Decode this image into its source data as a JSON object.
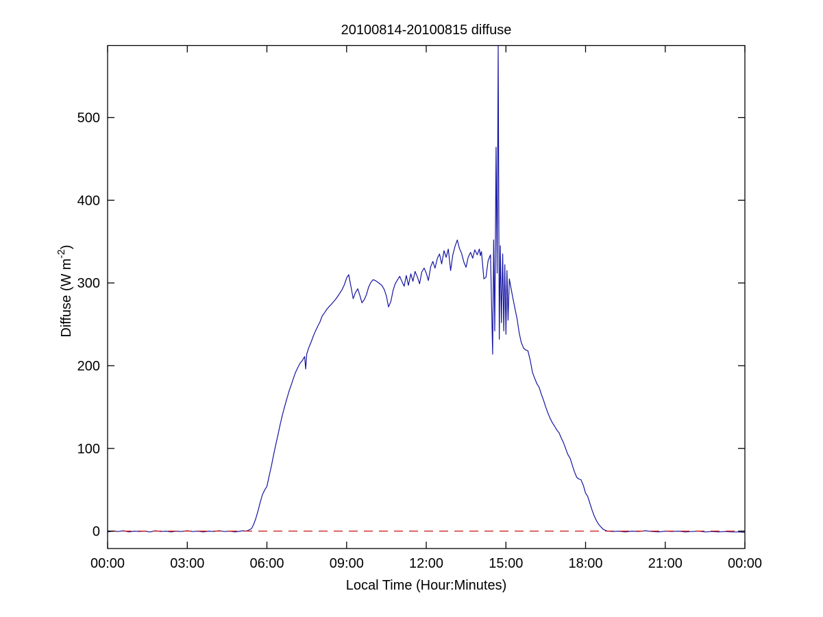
{
  "title": "20100814-20100815 diffuse",
  "chart_data": {
    "type": "line",
    "title": "20100814-20100815 diffuse",
    "xlabel": "Local Time (Hour:Minutes)",
    "ylabel": "Diffuse (W m^-2)",
    "ylabel_parts": {
      "base": "Diffuse (W m",
      "superscript": "-2",
      "close": ")"
    },
    "xlim": [
      0,
      24
    ],
    "ylim": [
      -21,
      587
    ],
    "x_ticks": [
      0,
      3,
      6,
      9,
      12,
      15,
      18,
      21,
      24
    ],
    "x_tick_labels": [
      "00:00",
      "03:00",
      "06:00",
      "09:00",
      "12:00",
      "15:00",
      "18:00",
      "21:00",
      "00:00"
    ],
    "y_ticks": [
      0,
      100,
      200,
      300,
      400,
      500
    ],
    "y_tick_labels": [
      "0",
      "100",
      "200",
      "300",
      "400",
      "500"
    ],
    "grid": false,
    "legend": null,
    "box": true,
    "tick_direction": "in",
    "axis_color": "#000000",
    "background_color": "#ffffff",
    "series": [
      {
        "name": "diffuse",
        "color": "#1414a0",
        "style": "solid",
        "x_units": "hours",
        "points": [
          [
            0,
            -1
          ],
          [
            0.2,
            0
          ],
          [
            0.4,
            -0.5
          ],
          [
            0.6,
            0.5
          ],
          [
            0.8,
            -1
          ],
          [
            1,
            0
          ],
          [
            1.2,
            -0.5
          ],
          [
            1.4,
            0
          ],
          [
            1.6,
            -1
          ],
          [
            1.8,
            0.5
          ],
          [
            2,
            -0.5
          ],
          [
            2.2,
            0
          ],
          [
            2.4,
            -1
          ],
          [
            2.6,
            0
          ],
          [
            2.8,
            -0.5
          ],
          [
            3,
            0.5
          ],
          [
            3.2,
            -0.5
          ],
          [
            3.4,
            0
          ],
          [
            3.6,
            -1
          ],
          [
            3.8,
            0
          ],
          [
            4,
            -0.5
          ],
          [
            4.2,
            0.5
          ],
          [
            4.4,
            -0.5
          ],
          [
            4.6,
            0
          ],
          [
            4.8,
            -1
          ],
          [
            5,
            0
          ],
          [
            5.1,
            0.5
          ],
          [
            5.2,
            0
          ],
          [
            5.3,
            1
          ],
          [
            5.42,
            3
          ],
          [
            5.5,
            8
          ],
          [
            5.58,
            15
          ],
          [
            5.67,
            25
          ],
          [
            5.75,
            35
          ],
          [
            5.83,
            44
          ],
          [
            5.92,
            50
          ],
          [
            6,
            54
          ],
          [
            6.08,
            66
          ],
          [
            6.17,
            79
          ],
          [
            6.25,
            92
          ],
          [
            6.33,
            104
          ],
          [
            6.42,
            117
          ],
          [
            6.5,
            129
          ],
          [
            6.58,
            140
          ],
          [
            6.67,
            151
          ],
          [
            6.75,
            160
          ],
          [
            6.83,
            169
          ],
          [
            6.92,
            177
          ],
          [
            7,
            185
          ],
          [
            7.08,
            192
          ],
          [
            7.17,
            198
          ],
          [
            7.25,
            203
          ],
          [
            7.33,
            206
          ],
          [
            7.42,
            211
          ],
          [
            7.46,
            196
          ],
          [
            7.5,
            214
          ],
          [
            7.58,
            222
          ],
          [
            7.67,
            229
          ],
          [
            7.75,
            236
          ],
          [
            7.83,
            242
          ],
          [
            7.92,
            248
          ],
          [
            8,
            253
          ],
          [
            8.08,
            260
          ],
          [
            8.17,
            264
          ],
          [
            8.25,
            268
          ],
          [
            8.33,
            271
          ],
          [
            8.42,
            274
          ],
          [
            8.5,
            277
          ],
          [
            8.58,
            280
          ],
          [
            8.67,
            284
          ],
          [
            8.75,
            288
          ],
          [
            8.83,
            292
          ],
          [
            8.92,
            298
          ],
          [
            9,
            306
          ],
          [
            9.08,
            310
          ],
          [
            9.17,
            295
          ],
          [
            9.25,
            281
          ],
          [
            9.33,
            288
          ],
          [
            9.42,
            293
          ],
          [
            9.5,
            285
          ],
          [
            9.58,
            276
          ],
          [
            9.67,
            280
          ],
          [
            9.75,
            286
          ],
          [
            9.83,
            295
          ],
          [
            9.92,
            301
          ],
          [
            10,
            304
          ],
          [
            10.08,
            303
          ],
          [
            10.17,
            301
          ],
          [
            10.25,
            299
          ],
          [
            10.33,
            297
          ],
          [
            10.42,
            292
          ],
          [
            10.5,
            284
          ],
          [
            10.58,
            271
          ],
          [
            10.67,
            278
          ],
          [
            10.75,
            291
          ],
          [
            10.83,
            299
          ],
          [
            10.92,
            304
          ],
          [
            11,
            308
          ],
          [
            11.08,
            302
          ],
          [
            11.17,
            296
          ],
          [
            11.25,
            309
          ],
          [
            11.33,
            297
          ],
          [
            11.42,
            311
          ],
          [
            11.5,
            302
          ],
          [
            11.58,
            314
          ],
          [
            11.67,
            307
          ],
          [
            11.75,
            299
          ],
          [
            11.83,
            313
          ],
          [
            11.92,
            318
          ],
          [
            12,
            312
          ],
          [
            12.08,
            303
          ],
          [
            12.17,
            320
          ],
          [
            12.25,
            326
          ],
          [
            12.33,
            318
          ],
          [
            12.42,
            330
          ],
          [
            12.5,
            335
          ],
          [
            12.58,
            323
          ],
          [
            12.67,
            339
          ],
          [
            12.75,
            331
          ],
          [
            12.83,
            341
          ],
          [
            12.92,
            315
          ],
          [
            13,
            334
          ],
          [
            13.08,
            344
          ],
          [
            13.17,
            352
          ],
          [
            13.25,
            342
          ],
          [
            13.33,
            336
          ],
          [
            13.42,
            325
          ],
          [
            13.5,
            319
          ],
          [
            13.58,
            331
          ],
          [
            13.67,
            337
          ],
          [
            13.75,
            330
          ],
          [
            13.83,
            340
          ],
          [
            13.92,
            334
          ],
          [
            14,
            341
          ],
          [
            14.04,
            333
          ],
          [
            14.08,
            338
          ],
          [
            14.13,
            320
          ],
          [
            14.17,
            305
          ],
          [
            14.25,
            307
          ],
          [
            14.33,
            327
          ],
          [
            14.42,
            334
          ],
          [
            14.5,
            214
          ],
          [
            14.54,
            352
          ],
          [
            14.58,
            242
          ],
          [
            14.63,
            464
          ],
          [
            14.67,
            312
          ],
          [
            14.71,
            588
          ],
          [
            14.75,
            232
          ],
          [
            14.79,
            345
          ],
          [
            14.83,
            252
          ],
          [
            14.88,
            335
          ],
          [
            14.92,
            242
          ],
          [
            14.96,
            322
          ],
          [
            15,
            238
          ],
          [
            15.04,
            315
          ],
          [
            15.08,
            255
          ],
          [
            15.13,
            305
          ],
          [
            15.17,
            298
          ],
          [
            15.25,
            284
          ],
          [
            15.33,
            271
          ],
          [
            15.42,
            257
          ],
          [
            15.5,
            240
          ],
          [
            15.58,
            228
          ],
          [
            15.67,
            221
          ],
          [
            15.75,
            219
          ],
          [
            15.83,
            218
          ],
          [
            15.92,
            206
          ],
          [
            16,
            192
          ],
          [
            16.08,
            185
          ],
          [
            16.17,
            178
          ],
          [
            16.25,
            174
          ],
          [
            16.33,
            166
          ],
          [
            16.42,
            158
          ],
          [
            16.5,
            150
          ],
          [
            16.58,
            143
          ],
          [
            16.67,
            136
          ],
          [
            16.75,
            131
          ],
          [
            16.83,
            127
          ],
          [
            16.92,
            122
          ],
          [
            17,
            119
          ],
          [
            17.08,
            113
          ],
          [
            17.17,
            107
          ],
          [
            17.25,
            100
          ],
          [
            17.33,
            93
          ],
          [
            17.42,
            88
          ],
          [
            17.5,
            80
          ],
          [
            17.58,
            72
          ],
          [
            17.67,
            65
          ],
          [
            17.75,
            63
          ],
          [
            17.83,
            62
          ],
          [
            17.92,
            55
          ],
          [
            18,
            46
          ],
          [
            18.08,
            42
          ],
          [
            18.17,
            33
          ],
          [
            18.25,
            25
          ],
          [
            18.33,
            18
          ],
          [
            18.42,
            12
          ],
          [
            18.5,
            8
          ],
          [
            18.58,
            5
          ],
          [
            18.67,
            2
          ],
          [
            18.75,
            1
          ],
          [
            18.83,
            0
          ],
          [
            19,
            -0.5
          ],
          [
            19.25,
            0
          ],
          [
            19.5,
            -1
          ],
          [
            19.75,
            0
          ],
          [
            20,
            -0.5
          ],
          [
            20.25,
            0.5
          ],
          [
            20.5,
            -0.5
          ],
          [
            20.75,
            -1
          ],
          [
            21,
            0
          ],
          [
            21.25,
            -0.5
          ],
          [
            21.5,
            0
          ],
          [
            21.75,
            -1
          ],
          [
            22,
            -0.5
          ],
          [
            22.25,
            0
          ],
          [
            22.5,
            -1
          ],
          [
            22.75,
            -0.5
          ],
          [
            23,
            -1
          ],
          [
            23.25,
            -0.5
          ],
          [
            23.5,
            -1
          ],
          [
            23.75,
            -1
          ],
          [
            24,
            -1.5
          ]
        ]
      }
    ],
    "reference_line": {
      "y": 0,
      "color": "#cc2222",
      "style": "dashed"
    }
  }
}
